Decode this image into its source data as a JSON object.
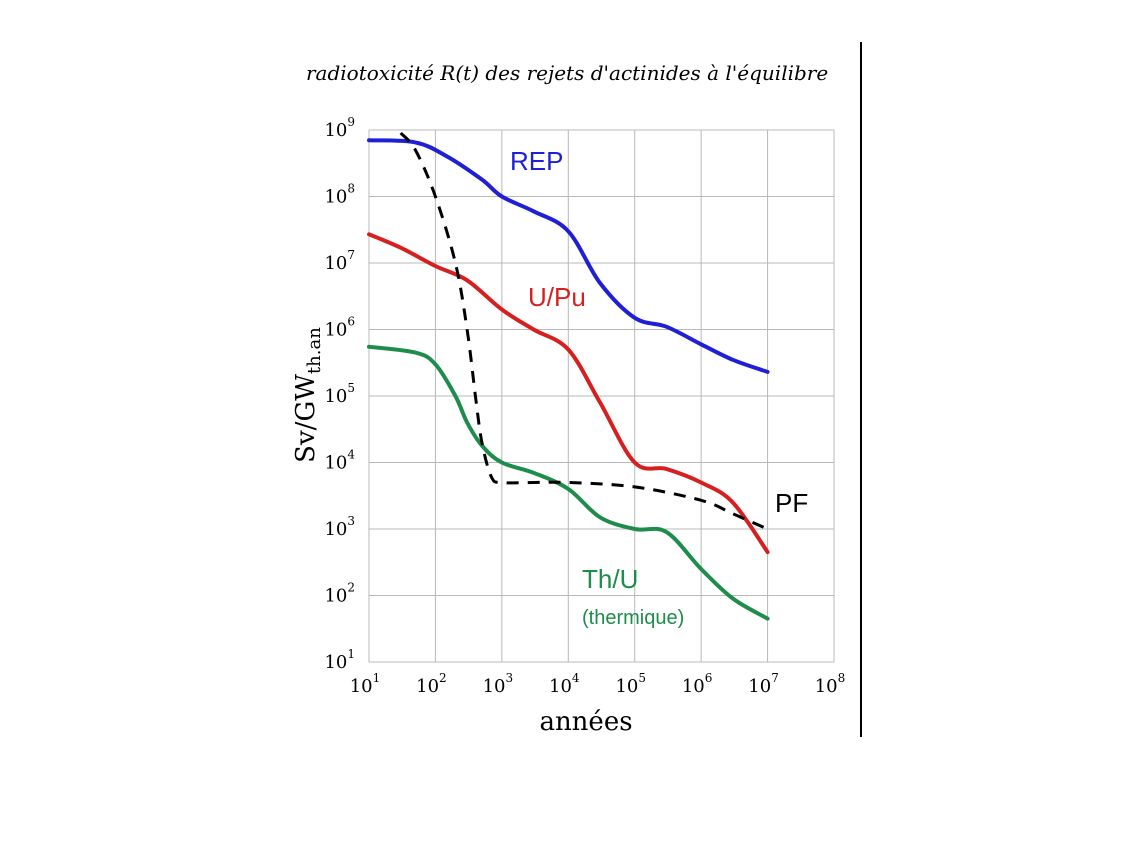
{
  "chart_data": {
    "type": "line",
    "title": "radiotoxicité R(t) des rejets d'actinides à l'équilibre",
    "xlabel": "années",
    "ylabel": "Sv/GW",
    "ylabel_sub": "th.an",
    "x_scale": "log",
    "y_scale": "log",
    "xlim": [
      10,
      100000000
    ],
    "ylim": [
      10,
      1000000000
    ],
    "x_ticks": [
      {
        "base": "10",
        "exp": "1",
        "value": 10
      },
      {
        "base": "10",
        "exp": "2",
        "value": 100
      },
      {
        "base": "10",
        "exp": "3",
        "value": 1000
      },
      {
        "base": "10",
        "exp": "4",
        "value": 10000
      },
      {
        "base": "10",
        "exp": "5",
        "value": 100000
      },
      {
        "base": "10",
        "exp": "6",
        "value": 1000000
      },
      {
        "base": "10",
        "exp": "7",
        "value": 10000000
      },
      {
        "base": "10",
        "exp": "8",
        "value": 100000000
      }
    ],
    "y_ticks": [
      {
        "base": "10",
        "exp": "1",
        "value": 10
      },
      {
        "base": "10",
        "exp": "2",
        "value": 100
      },
      {
        "base": "10",
        "exp": "3",
        "value": 1000
      },
      {
        "base": "10",
        "exp": "4",
        "value": 10000
      },
      {
        "base": "10",
        "exp": "5",
        "value": 100000
      },
      {
        "base": "10",
        "exp": "6",
        "value": 1000000
      },
      {
        "base": "10",
        "exp": "7",
        "value": 10000000
      },
      {
        "base": "10",
        "exp": "8",
        "value": 100000000
      },
      {
        "base": "10",
        "exp": "9",
        "value": 1000000000
      }
    ],
    "grid": true,
    "series": [
      {
        "name": "REP",
        "color": "#1f1fd6",
        "dashed": false,
        "x": [
          10,
          50,
          150,
          500,
          1000,
          3000,
          10000,
          30000,
          100000,
          300000,
          1000000,
          3000000,
          10000000
        ],
        "y": [
          700000000,
          650000000,
          400000000,
          180000000,
          100000000,
          60000000,
          30000000,
          5000000,
          1500000,
          1100000,
          600000,
          350000,
          230000
        ]
      },
      {
        "name": "U/Pu",
        "color": "#d62020",
        "dashed": false,
        "x": [
          10,
          30,
          100,
          300,
          1000,
          3000,
          10000,
          30000,
          100000,
          300000,
          1000000,
          3000000,
          10000000
        ],
        "y": [
          27000000,
          17000000,
          9000000,
          5500000,
          2000000,
          1000000,
          500000,
          80000,
          10000,
          8000,
          5000,
          2500,
          450
        ]
      },
      {
        "name": "Th/U",
        "name_sub": "(thermique)",
        "color": "#1e8c4a",
        "dashed": false,
        "x": [
          10,
          50,
          100,
          200,
          300,
          500,
          1000,
          3000,
          10000,
          30000,
          100000,
          300000,
          1000000,
          3000000,
          10000000
        ],
        "y": [
          550000,
          450000,
          300000,
          100000,
          40000,
          18000,
          10000,
          7000,
          4000,
          1500,
          1000,
          900,
          250,
          90,
          45
        ]
      },
      {
        "name": "PF",
        "color": "#000000",
        "dashed": true,
        "x": [
          30,
          50,
          100,
          200,
          300,
          400,
          500,
          700,
          1000,
          3000,
          10000,
          100000,
          1000000,
          3000000,
          10000000
        ],
        "y": [
          900000000,
          500000000,
          100000000,
          10000000,
          1000000,
          100000,
          20000,
          6000,
          5000,
          5000,
          5000,
          4300,
          2700,
          1700,
          1000
        ]
      }
    ]
  }
}
